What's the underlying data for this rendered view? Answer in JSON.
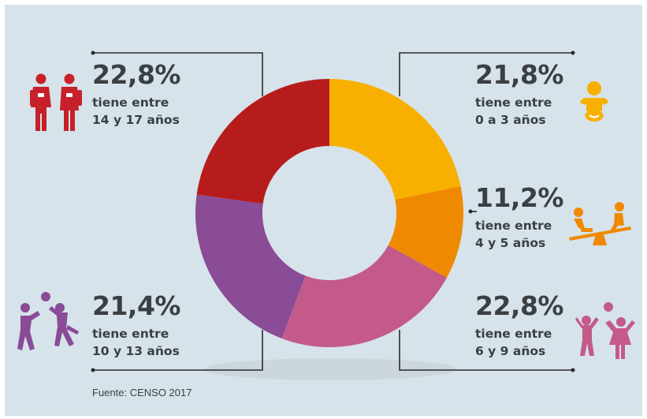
{
  "chart_data": {
    "type": "pie",
    "variant": "donut",
    "direction": "clockwise-from-top",
    "slices": [
      {
        "value_label": "21,8%",
        "value": 21.8,
        "line1": "tiene entre",
        "line2": "0 a 3 años",
        "color": "#f7b000",
        "icon": "baby-icon"
      },
      {
        "value_label": "11,2%",
        "value": 11.2,
        "line1": "tiene entre",
        "line2": "4 y 5 años",
        "color": "#ef8a00",
        "icon": "seesaw-kids-icon"
      },
      {
        "value_label": "22,8%",
        "value": 22.8,
        "line1": "tiene entre",
        "line2": "6 y 9 años",
        "color": "#c45a8a",
        "icon": "children-playing-icon"
      },
      {
        "value_label": "21,4%",
        "value": 21.4,
        "line1": "tiene entre",
        "line2": "10 y 13 años",
        "color": "#8a4b97",
        "icon": "ball-players-icon"
      },
      {
        "value_label": "22,8%",
        "value": 22.8,
        "line1": "tiene entre",
        "line2": "14 y 17 años",
        "color": "#b71c1c",
        "icon": "teens-backpack-icon"
      }
    ]
  },
  "source": "Fuente: CENSO 2017"
}
